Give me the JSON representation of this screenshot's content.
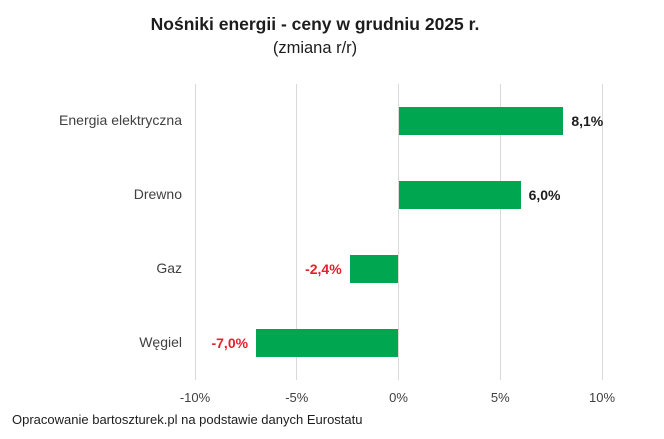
{
  "title": "Nośniki energii - ceny w grudniu 2025 r.",
  "subtitle": "(zmiana r/r)",
  "footer": "Opracowanie bartoszturek.pl na podstawie danych Eurostatu",
  "chart_data": {
    "type": "bar",
    "orientation": "horizontal",
    "title": "Nośniki energii - ceny w grudniu 2025 r.",
    "subtitle": "(zmiana r/r)",
    "categories": [
      "Energia elektryczna",
      "Drewno",
      "Gaz",
      "Węgiel"
    ],
    "values": [
      8.1,
      6.0,
      -2.4,
      -7.0
    ],
    "value_labels": [
      "8,1%",
      "6,0%",
      "-2,4%",
      "-7,0%"
    ],
    "unit": "%",
    "xlim": [
      -10,
      10
    ],
    "x_tick_values": [
      -10,
      -5,
      0,
      5,
      10
    ],
    "x_tick_labels": [
      "-10%",
      "-5%",
      "0%",
      "5%",
      "10%"
    ],
    "grid": true,
    "legend": false,
    "colors": {
      "bar": "#00a650",
      "positive_label": "#1d1d1d",
      "negative_label": "#e4202c",
      "gridline": "#d9d9d9",
      "axis_text": "#404040"
    }
  }
}
